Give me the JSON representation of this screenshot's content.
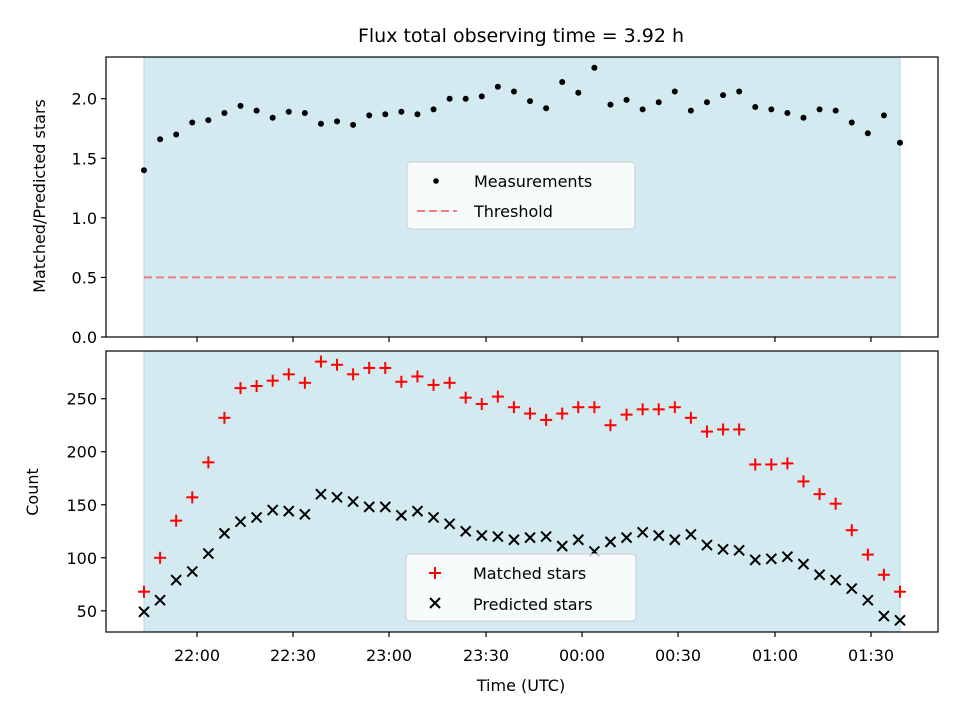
{
  "chart_data": {
    "title": "Flux total observing time = 3.92 h",
    "xlabel": "Time (UTC)",
    "x_tick_labels": [
      "22:00",
      "22:30",
      "23:00",
      "23:30",
      "00:00",
      "00:30",
      "01:00",
      "01:30"
    ],
    "shaded_colors": {
      "band": "#d4eaf1",
      "band_edge": "#b5d7e3"
    },
    "top": {
      "type": "scatter",
      "ylabel": "Matched/Predicted stars",
      "ylim": [
        0,
        2.35
      ],
      "y_ticks": [
        "0.0",
        "0.5",
        "1.0",
        "1.5",
        "2.0"
      ],
      "threshold": 0.5,
      "legend": {
        "placement": "center",
        "measurements_label": "Measurements",
        "threshold_label": "Threshold"
      },
      "colors": {
        "points": "#000000",
        "threshold": "#f07c7c"
      },
      "ratio": [
        1.4,
        1.66,
        1.7,
        1.8,
        1.82,
        1.88,
        1.94,
        1.9,
        1.84,
        1.89,
        1.88,
        1.79,
        1.81,
        1.78,
        1.86,
        1.87,
        1.89,
        1.87,
        1.91,
        2.0,
        2.0,
        2.02,
        2.1,
        2.06,
        1.98,
        1.92,
        2.14,
        2.05,
        2.26,
        1.95,
        1.99,
        1.91,
        1.97,
        2.06,
        1.9,
        1.97,
        2.03,
        2.06,
        1.93,
        1.91,
        1.88,
        1.84,
        1.91,
        1.9,
        1.8,
        1.71,
        1.86,
        1.63
      ]
    },
    "bottom": {
      "type": "scatter",
      "ylabel": "Count",
      "ylim": [
        30,
        295
      ],
      "y_ticks": [
        "50",
        "100",
        "150",
        "200",
        "250"
      ],
      "legend": {
        "placement": "bottom-center",
        "matched_label": "Matched stars",
        "predicted_label": "Predicted stars"
      },
      "colors": {
        "matched": "#ff0000",
        "predicted": "#000000"
      },
      "matched": [
        68,
        100,
        135,
        157,
        190,
        232,
        260,
        262,
        267,
        273,
        265,
        285,
        282,
        273,
        279,
        279,
        266,
        271,
        263,
        265,
        251,
        245,
        252,
        242,
        236,
        230,
        236,
        242,
        242,
        225,
        235,
        240,
        240,
        242,
        232,
        219,
        221,
        221,
        188,
        188,
        189,
        172,
        160,
        151,
        126,
        103,
        84,
        68
      ],
      "predicted": [
        49,
        60,
        79,
        87,
        104,
        123,
        134,
        138,
        145,
        144,
        141,
        160,
        157,
        153,
        148,
        148,
        140,
        144,
        138,
        132,
        125,
        121,
        120,
        117,
        119,
        120,
        111,
        117,
        106,
        115,
        119,
        124,
        121,
        117,
        122,
        112,
        108,
        107,
        98,
        99,
        101,
        94,
        84,
        79,
        71,
        60,
        45,
        41
      ]
    }
  }
}
